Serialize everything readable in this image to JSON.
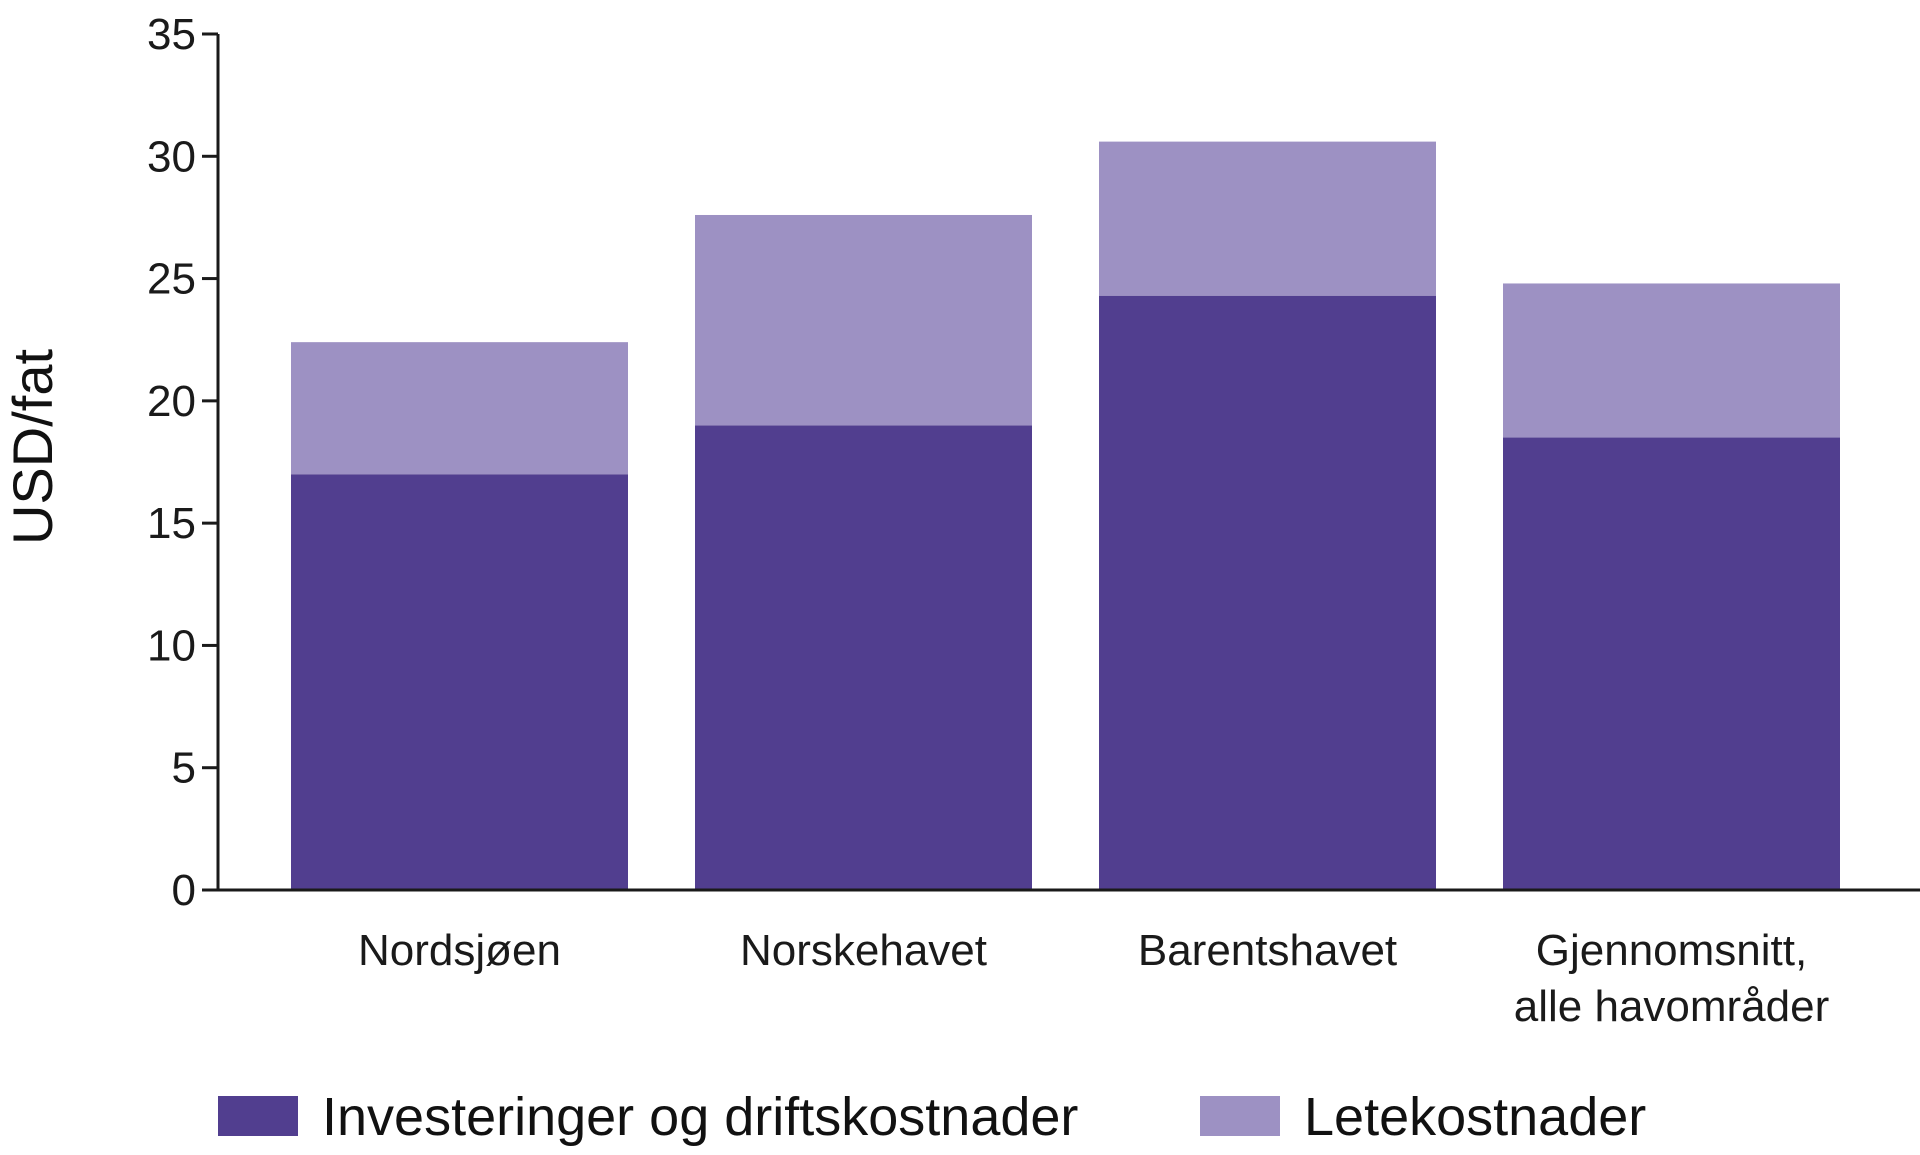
{
  "chart_data": {
    "type": "bar",
    "stacked": true,
    "title": "",
    "xlabel": "",
    "ylabel": "USD/fat",
    "ylim": [
      0,
      35
    ],
    "yticks": [
      0,
      5,
      10,
      15,
      20,
      25,
      30,
      35
    ],
    "grid": false,
    "legend_position": "bottom",
    "categories": [
      [
        "Nordsjøen"
      ],
      [
        "Norskehavet"
      ],
      [
        "Barentshavet"
      ],
      [
        "Gjennomsnitt,",
        "alle havområder"
      ]
    ],
    "series": [
      {
        "name": "Investeringer og driftskostnader",
        "color": "#513e8f",
        "values": [
          17.0,
          19.0,
          24.3,
          18.5
        ]
      },
      {
        "name": "Letekostnader",
        "color": "#9d91c3",
        "values": [
          5.4,
          8.6,
          6.3,
          6.3
        ]
      }
    ]
  }
}
